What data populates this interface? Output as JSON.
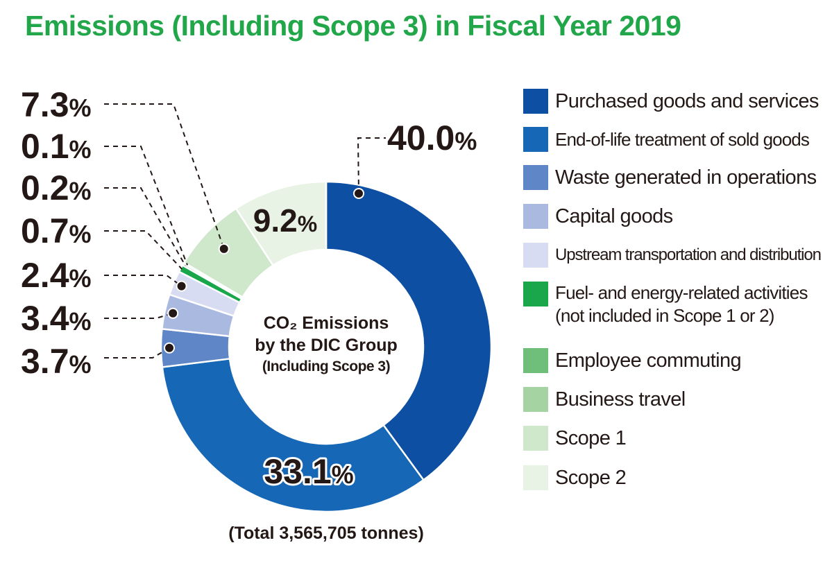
{
  "title": "Emissions (Including Scope 3) in Fiscal Year 2019",
  "center_label": {
    "line1": "CO₂ Emissions",
    "line2": "by the DIC Group",
    "line3": "(Including Scope 3)"
  },
  "total": "(Total 3,565,705 tonnes)",
  "chart_data": {
    "type": "pie",
    "title": "Emissions (Including Scope 3) in Fiscal Year 2019",
    "donut": true,
    "legend_position": "right",
    "unit": "%",
    "slices": [
      {
        "name": "Purchased goods and services",
        "value": 40.0,
        "label": "40.0",
        "color": "#0c4fa3"
      },
      {
        "name": "End-of-life treatment of sold goods",
        "value": 33.1,
        "label": "33.1",
        "color": "#1668b7"
      },
      {
        "name": "Waste generated in operations",
        "value": 3.7,
        "label": "3.7",
        "color": "#5f86c6"
      },
      {
        "name": "Capital goods",
        "value": 3.4,
        "label": "3.4",
        "color": "#aab9e0"
      },
      {
        "name": "Upstream transportation and distribution",
        "value": 2.4,
        "label": "2.4",
        "color": "#d7dcf2"
      },
      {
        "name": "Fuel- and energy-related activities\n(not included in Scope 1 or 2)",
        "value": 0.7,
        "label": "0.7",
        "color": "#1aa64a"
      },
      {
        "name": "Employee commuting",
        "value": 0.2,
        "label": "0.2",
        "color": "#6fbf7b"
      },
      {
        "name": "Business travel",
        "value": 0.1,
        "label": "0.1",
        "color": "#a5d4a2"
      },
      {
        "name": "Scope 1",
        "value": 7.3,
        "label": "7.3",
        "color": "#cfe8cb"
      },
      {
        "name": "Scope 2",
        "value": 9.2,
        "label": "9.2",
        "color": "#e8f2e5"
      }
    ]
  }
}
